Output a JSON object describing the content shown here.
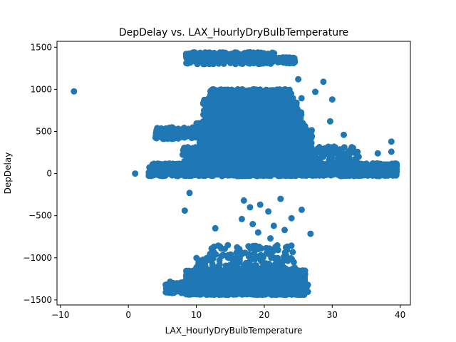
{
  "chart_data": {
    "type": "scatter",
    "title": "DepDelay vs. LAX_HourlyDryBulbTemperature",
    "xlabel": "LAX_HourlyDryBulbTemperature",
    "ylabel": "DepDelay",
    "xlim": [
      -10.5,
      41.5
    ],
    "ylim": [
      -1560,
      1570
    ],
    "xticks": [
      -10,
      0,
      10,
      20,
      30,
      40
    ],
    "yticks": [
      -1500,
      -1000,
      -500,
      0,
      500,
      1000,
      1500
    ],
    "xtick_labels": [
      "−10",
      "0",
      "10",
      "20",
      "30",
      "40"
    ],
    "ytick_labels": [
      "−1500",
      "−1000",
      "−500",
      "0",
      "500",
      "1000",
      "1500"
    ],
    "grid": false,
    "marker_color": "#1f77b4",
    "outliers": [
      {
        "x": -8.0,
        "y": 975
      },
      {
        "x": 9.0,
        "y": -230
      },
      {
        "x": 8.3,
        "y": -440
      },
      {
        "x": 12.8,
        "y": -650
      },
      {
        "x": 17.0,
        "y": -320
      },
      {
        "x": 17.9,
        "y": -400
      },
      {
        "x": 19.4,
        "y": -370
      },
      {
        "x": 20.6,
        "y": -450
      },
      {
        "x": 22.4,
        "y": -300
      },
      {
        "x": 25.5,
        "y": -430
      },
      {
        "x": 24.0,
        "y": -530
      },
      {
        "x": 16.7,
        "y": -540
      },
      {
        "x": 18.3,
        "y": -600
      },
      {
        "x": 21.4,
        "y": -620
      },
      {
        "x": 23.0,
        "y": -670
      },
      {
        "x": 19.1,
        "y": -700
      },
      {
        "x": 26.8,
        "y": -715
      },
      {
        "x": 20.9,
        "y": -770
      },
      {
        "x": 31.7,
        "y": 460
      },
      {
        "x": 28.7,
        "y": 1090
      },
      {
        "x": 25.0,
        "y": 1120
      },
      {
        "x": 27.5,
        "y": 970
      },
      {
        "x": 30.0,
        "y": 880
      },
      {
        "x": 38.7,
        "y": 380
      },
      {
        "x": 38.7,
        "y": 260
      },
      {
        "x": 36.7,
        "y": 240
      },
      {
        "x": 1.0,
        "y": 0
      },
      {
        "x": 8.5,
        "y": 1420
      },
      {
        "x": 29.7,
        "y": 620
      }
    ],
    "clusters": [
      {
        "n": 320,
        "x": [
          8.5,
          21.5
        ],
        "y": [
          1300,
          1440
        ]
      },
      {
        "n": 80,
        "x": [
          22.0,
          24.5
        ],
        "y": [
          1310,
          1380
        ]
      },
      {
        "n": 1200,
        "x": [
          12.0,
          24.0
        ],
        "y": [
          600,
          1000
        ]
      },
      {
        "n": 500,
        "x": [
          11.0,
          25.5
        ],
        "y": [
          500,
          900
        ]
      },
      {
        "n": 400,
        "x": [
          10.0,
          26.0
        ],
        "y": [
          400,
          600
        ]
      },
      {
        "n": 120,
        "x": [
          4.0,
          10.0
        ],
        "y": [
          410,
          550
        ]
      },
      {
        "n": 2200,
        "x": [
          10.5,
          27.0
        ],
        "y": [
          -10,
          520
        ]
      },
      {
        "n": 1600,
        "x": [
          3.0,
          39.5
        ],
        "y": [
          -30,
          120
        ]
      },
      {
        "n": 500,
        "x": [
          8.0,
          34.0
        ],
        "y": [
          80,
          320
        ]
      },
      {
        "n": 2000,
        "x": [
          8.5,
          26.0
        ],
        "y": [
          -1440,
          -1150
        ]
      },
      {
        "n": 400,
        "x": [
          5.5,
          26.5
        ],
        "y": [
          -1420,
          -1280
        ]
      },
      {
        "n": 150,
        "x": [
          12.0,
          24.5
        ],
        "y": [
          -1150,
          -850
        ]
      },
      {
        "n": 60,
        "x": [
          10.0,
          12.0
        ],
        "y": [
          -1300,
          -1000
        ]
      }
    ]
  }
}
